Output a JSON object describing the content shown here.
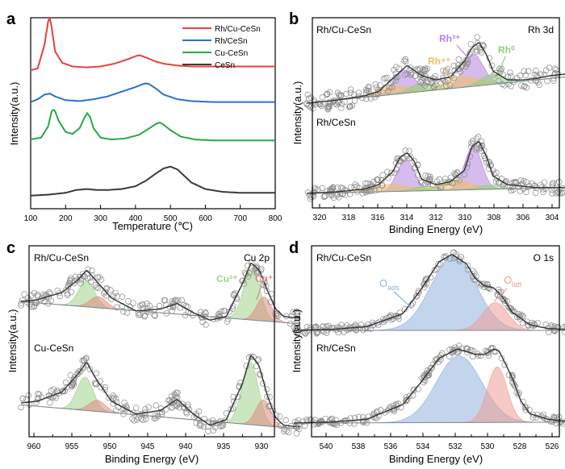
{
  "panels": {
    "a": {
      "letter": "a",
      "xlabel": "Temperature (℃)",
      "ylabel": "Intensity(a.u.)",
      "xticks": [
        "100",
        "200",
        "300",
        "400",
        "500",
        "600",
        "700",
        "800"
      ],
      "legend": [
        "Rh/Cu-CeSn",
        "Rh/CeSn",
        "Cu-CeSn",
        "CeSn"
      ]
    },
    "b": {
      "letter": "b",
      "xlabel": "Binding Energy (eV)",
      "ylabel": "Intensity(a.u.)",
      "xticks": [
        "320",
        "318",
        "316",
        "314",
        "312",
        "310",
        "308",
        "306",
        "304"
      ],
      "sample_top": "Rh/Cu-CeSn",
      "sample_bottom": "Rh/CeSn",
      "region": "Rh 3d",
      "species": [
        "Rh³⁺",
        "Rh⁴⁺",
        "Rh⁰"
      ]
    },
    "c": {
      "letter": "c",
      "xlabel": "Binding Energy (eV)",
      "ylabel": "Intensity(a.u.)",
      "xticks": [
        "960",
        "955",
        "950",
        "945",
        "940",
        "935",
        "930"
      ],
      "sample_top": "Rh/Cu-CeSn",
      "sample_bottom": "Cu-CeSn",
      "region": "Cu 2p",
      "species": [
        "Cu²⁺",
        "Cu⁺"
      ]
    },
    "d": {
      "letter": "d",
      "xlabel": "Binding Energy (eV)",
      "ylabel": "Intensity(a.u.)",
      "xticks": [
        "540",
        "538",
        "536",
        "534",
        "532",
        "530",
        "528",
        "526"
      ],
      "sample_top": "Rh/Cu-CeSn",
      "sample_bottom": "Rh/CeSn",
      "region": "O 1s",
      "species": [
        "O",
        "ads",
        "O",
        "latt"
      ]
    }
  },
  "colors": {
    "red": "#e8413a",
    "blue": "#2a6fd6",
    "green": "#2aa845",
    "black": "#3a3a3a",
    "purple": "#b583e0",
    "orange": "#f0c060",
    "lgreen": "#8fcf7a",
    "cu2": "#9fd48a",
    "cu1": "#e08a80",
    "oads": "#8fb3dc",
    "olatt": "#ef9c98"
  },
  "chart_data": [
    {
      "panel": "a",
      "type": "line",
      "title": "",
      "xlabel": "Temperature (℃)",
      "ylabel": "Intensity(a.u.)",
      "xlim": [
        100,
        800
      ],
      "series": [
        {
          "name": "Rh/Cu-CeSn",
          "x": [
            100,
            120,
            140,
            150,
            155,
            160,
            170,
            190,
            220,
            260,
            300,
            340,
            380,
            400,
            410,
            420,
            440,
            460,
            480,
            520,
            560,
            620,
            700,
            760,
            800
          ],
          "y": [
            0.74,
            0.75,
            0.88,
            1.0,
            1.02,
            0.97,
            0.84,
            0.78,
            0.76,
            0.755,
            0.76,
            0.775,
            0.8,
            0.815,
            0.82,
            0.815,
            0.8,
            0.785,
            0.775,
            0.765,
            0.76,
            0.76,
            0.76,
            0.76,
            0.76
          ]
        },
        {
          "name": "Rh/CeSn",
          "x": [
            100,
            120,
            140,
            155,
            170,
            200,
            240,
            280,
            320,
            360,
            400,
            420,
            430,
            440,
            460,
            480,
            520,
            560,
            620,
            700,
            800
          ],
          "y": [
            0.57,
            0.585,
            0.61,
            0.615,
            0.6,
            0.58,
            0.575,
            0.585,
            0.6,
            0.625,
            0.65,
            0.665,
            0.67,
            0.665,
            0.64,
            0.61,
            0.585,
            0.575,
            0.57,
            0.57,
            0.57
          ]
        },
        {
          "name": "Cu-CeSn",
          "x": [
            100,
            130,
            150,
            160,
            165,
            170,
            180,
            200,
            220,
            240,
            255,
            262,
            270,
            280,
            300,
            330,
            370,
            410,
            440,
            460,
            470,
            480,
            500,
            530,
            570,
            620,
            700,
            800
          ],
          "y": [
            0.37,
            0.38,
            0.44,
            0.52,
            0.53,
            0.52,
            0.47,
            0.41,
            0.4,
            0.43,
            0.49,
            0.51,
            0.49,
            0.43,
            0.38,
            0.37,
            0.375,
            0.395,
            0.43,
            0.455,
            0.46,
            0.45,
            0.42,
            0.385,
            0.37,
            0.365,
            0.365,
            0.365
          ]
        },
        {
          "name": "CeSn",
          "x": [
            100,
            150,
            200,
            230,
            260,
            290,
            320,
            360,
            400,
            430,
            460,
            480,
            500,
            520,
            540,
            560,
            600,
            650,
            700,
            800
          ],
          "y": [
            0.07,
            0.075,
            0.085,
            0.1,
            0.105,
            0.1,
            0.1,
            0.105,
            0.12,
            0.15,
            0.19,
            0.215,
            0.225,
            0.21,
            0.175,
            0.14,
            0.105,
            0.09,
            0.085,
            0.085
          ]
        }
      ]
    },
    {
      "panel": "b",
      "type": "line",
      "title": "Rh 3d",
      "xlabel": "Binding Energy (eV)",
      "ylabel": "Intensity(a.u.)",
      "xlim": [
        321,
        303
      ],
      "series": [
        {
          "name": "Rh/Cu-CeSn",
          "x": [
            321,
            319,
            317,
            316,
            315,
            314,
            313,
            312,
            311,
            310,
            309.5,
            309,
            308.5,
            308,
            307,
            306,
            305,
            304,
            303
          ],
          "y": [
            0.36,
            0.38,
            0.41,
            0.44,
            0.53,
            0.62,
            0.55,
            0.52,
            0.54,
            0.65,
            0.74,
            0.78,
            0.7,
            0.58,
            0.52,
            0.52,
            0.53,
            0.55,
            0.56
          ]
        },
        {
          "name": "Rh/CeSn",
          "x": [
            321,
            319,
            317,
            316,
            315,
            314.5,
            314,
            313.5,
            313,
            312,
            311,
            310,
            309.5,
            309,
            308.5,
            308,
            307,
            305,
            303
          ],
          "y": [
            0.02,
            0.03,
            0.05,
            0.08,
            0.17,
            0.27,
            0.3,
            0.24,
            0.12,
            0.08,
            0.1,
            0.18,
            0.34,
            0.38,
            0.28,
            0.14,
            0.08,
            0.06,
            0.06
          ]
        }
      ]
    },
    {
      "panel": "c",
      "type": "line",
      "title": "Cu 2p",
      "xlabel": "Binding Energy (eV)",
      "ylabel": "Intensity(a.u.)",
      "xlim": [
        962,
        928
      ],
      "series": [
        {
          "name": "Rh/Cu-CeSn",
          "x": [
            962,
            960,
            957,
            955,
            954,
            953,
            951,
            948,
            945,
            943,
            941,
            939,
            937,
            935,
            934,
            933,
            932,
            931,
            930,
            928
          ],
          "y": [
            0.78,
            0.79,
            0.83,
            0.9,
            0.95,
            0.9,
            0.8,
            0.73,
            0.74,
            0.77,
            0.72,
            0.68,
            0.7,
            0.88,
            0.99,
            0.95,
            0.84,
            0.74,
            0.7,
            0.69
          ]
        },
        {
          "name": "Cu-CeSn",
          "x": [
            962,
            960,
            957,
            955,
            954,
            953,
            951,
            948,
            945,
            943,
            941,
            939,
            937,
            935,
            934,
            933,
            932,
            931,
            930,
            928
          ],
          "y": [
            0.34,
            0.35,
            0.4,
            0.5,
            0.56,
            0.48,
            0.35,
            0.28,
            0.3,
            0.36,
            0.28,
            0.22,
            0.25,
            0.45,
            0.6,
            0.54,
            0.38,
            0.26,
            0.22,
            0.21
          ]
        }
      ]
    },
    {
      "panel": "d",
      "type": "line",
      "title": "O 1s",
      "xlabel": "Binding Energy (eV)",
      "ylabel": "Intensity(a.u.)",
      "xlim": [
        541,
        525
      ],
      "series": [
        {
          "name": "Rh/Cu-CeSn",
          "x": [
            541,
            539,
            537,
            535,
            534,
            533,
            532.3,
            531.5,
            531,
            530.5,
            530,
            529.5,
            529,
            528,
            527,
            526,
            525
          ],
          "y": [
            0.56,
            0.565,
            0.58,
            0.65,
            0.78,
            0.93,
            0.97,
            0.92,
            0.84,
            0.8,
            0.79,
            0.74,
            0.66,
            0.59,
            0.57,
            0.565,
            0.56
          ]
        },
        {
          "name": "Rh/CeSn",
          "x": [
            541,
            539,
            537,
            535,
            534,
            533,
            532,
            531,
            530.5,
            530,
            529.7,
            529,
            528.5,
            528,
            527,
            526,
            525
          ],
          "y": [
            0.05,
            0.055,
            0.07,
            0.15,
            0.27,
            0.4,
            0.45,
            0.42,
            0.42,
            0.45,
            0.44,
            0.3,
            0.17,
            0.1,
            0.07,
            0.06,
            0.055
          ]
        }
      ]
    }
  ]
}
